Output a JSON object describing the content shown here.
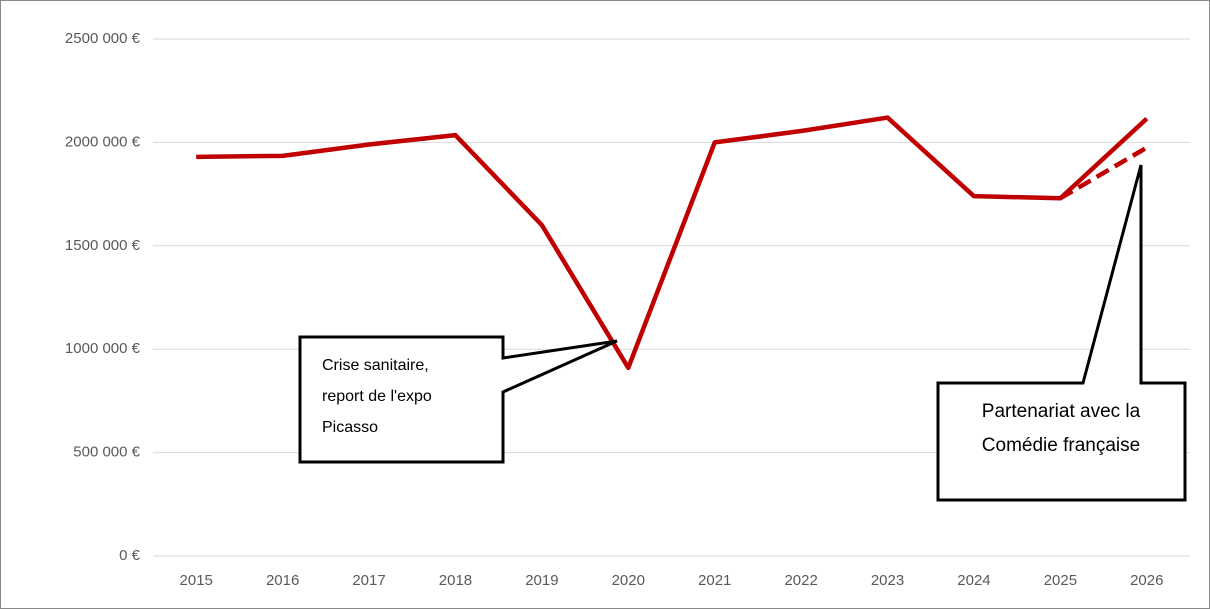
{
  "chart_data": {
    "type": "line",
    "categories": [
      "2015",
      "2016",
      "2017",
      "2018",
      "2019",
      "2020",
      "2021",
      "2022",
      "2023",
      "2024",
      "2025",
      "2026"
    ],
    "series": [
      {
        "color": "#c00000",
        "dash": false,
        "values": [
          1930000,
          1935000,
          1990000,
          2035000,
          1600000,
          910000,
          2000000,
          2055000,
          2120000,
          1740000,
          1730000,
          2115000
        ]
      },
      {
        "color": "#c00000",
        "dash": true,
        "values": [
          null,
          null,
          null,
          null,
          null,
          null,
          null,
          null,
          null,
          null,
          1730000,
          1975000
        ]
      }
    ],
    "ylim": [
      0,
      2500000
    ],
    "yticks": [
      {
        "value": 0,
        "label": "0 €"
      },
      {
        "value": 500000,
        "label": "500 000 €"
      },
      {
        "value": 1000000,
        "label": "1000 000 €"
      },
      {
        "value": 1500000,
        "label": "1500 000 €"
      },
      {
        "value": 2000000,
        "label": "2000 000 €"
      },
      {
        "value": 2500000,
        "label": "2500 000 €"
      }
    ],
    "grid": true,
    "annotations": [
      {
        "lines": [
          "Crise sanitaire,",
          "report de l'expo",
          "Picasso"
        ]
      },
      {
        "lines": [
          "Partenariat avec la",
          "Comédie française"
        ]
      }
    ]
  }
}
